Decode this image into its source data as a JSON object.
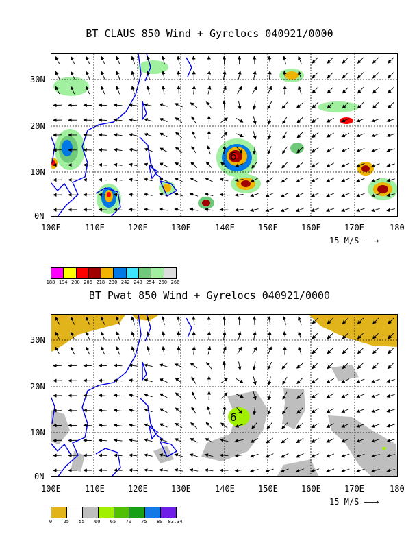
{
  "panel1": {
    "title": "BT CLAUS 850 Wind + Gyrelocs 040921/0000",
    "ref_vector": "15 M/S ——→",
    "colorbar": {
      "labels": [
        "188",
        "194",
        "200",
        "206",
        "218",
        "230",
        "242",
        "248",
        "254",
        "260",
        "266"
      ],
      "colors": [
        "#ff00ff",
        "#ffff00",
        "#ff0000",
        "#a00000",
        "#f0b400",
        "#0078e6",
        "#40e6ff",
        "#70c87a",
        "#a0f0a0",
        "#dcdcdc"
      ]
    }
  },
  "panel2": {
    "title": "BT Pwat 850 Wind + Gyrelocs 040921/0000",
    "ref_vector": "15 M/S ——→",
    "storm_marker": "6",
    "colorbar": {
      "labels": [
        "0",
        "25",
        "55",
        "60",
        "65",
        "70",
        "75",
        "80",
        "83.34"
      ],
      "colors": [
        "#e0b41a",
        "#ffffff",
        "#bebebe",
        "#a0f000",
        "#50c000",
        "#16a016",
        "#1478e6",
        "#6e1ee6"
      ]
    }
  },
  "axes": {
    "x_ticks": [
      "100E",
      "110E",
      "120E",
      "130E",
      "140E",
      "150E",
      "160E",
      "170E",
      "180"
    ],
    "y_ticks": [
      "0N",
      "10N",
      "20N",
      "30N"
    ]
  },
  "colors": {
    "coast": "#0000e6",
    "frame": "#000000"
  }
}
